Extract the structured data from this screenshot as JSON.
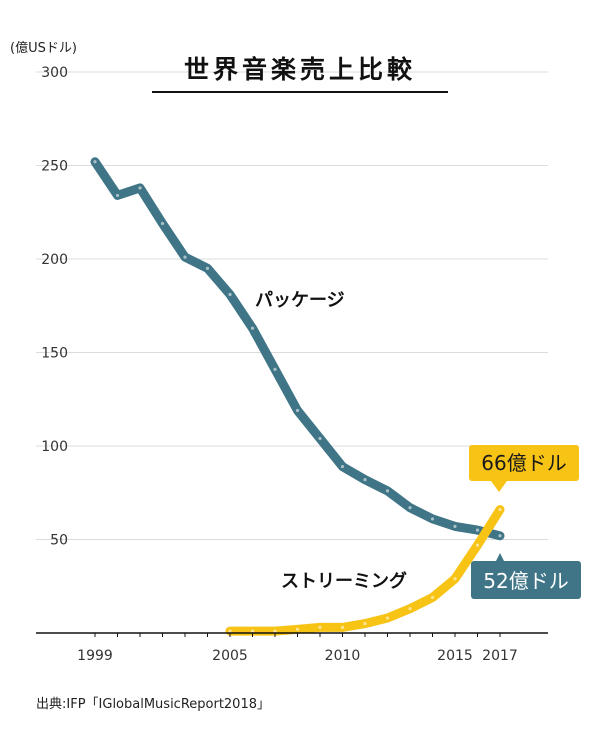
{
  "chart_data": {
    "type": "line",
    "title": "世界音楽売上比較",
    "unit_label": "(億USドル)",
    "ylim": [
      0,
      300
    ],
    "y_ticks": [
      50,
      100,
      150,
      200,
      250,
      300
    ],
    "x_range": [
      1997,
      2019
    ],
    "x_tick_labels": [
      1999,
      2005,
      2010,
      2015,
      2017
    ],
    "grid": true,
    "series": [
      {
        "name": "パッケージ",
        "color": "#3f7587",
        "x": [
          1999,
          2000,
          2001,
          2002,
          2003,
          2004,
          2005,
          2006,
          2007,
          2008,
          2009,
          2010,
          2011,
          2012,
          2013,
          2014,
          2015,
          2016,
          2017
        ],
        "values": [
          252,
          234,
          238,
          219,
          201,
          195,
          181,
          163,
          141,
          119,
          104,
          89,
          82,
          76,
          67,
          61,
          57,
          55,
          52
        ]
      },
      {
        "name": "ストリーミング",
        "color": "#f7c314",
        "x": [
          2005,
          2006,
          2007,
          2008,
          2009,
          2010,
          2011,
          2012,
          2013,
          2014,
          2015,
          2016,
          2017
        ],
        "values": [
          1,
          1,
          1,
          2,
          3,
          3,
          5,
          8,
          13,
          19,
          29,
          47,
          66
        ]
      }
    ],
    "callouts": [
      {
        "text": "66億ドル",
        "bg": "#f7c314",
        "fg": "#1a1a1a"
      },
      {
        "text": "52億ドル",
        "bg": "#3f7587",
        "fg": "#ffffff"
      }
    ],
    "source": "出典:IFP「IGlobalMusicReport2018」"
  }
}
